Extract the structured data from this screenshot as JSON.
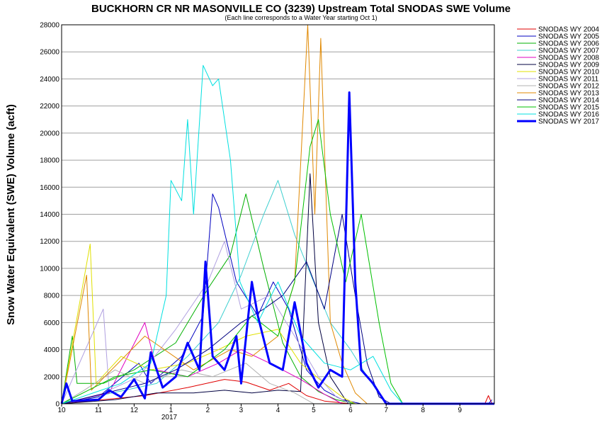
{
  "chart_data": {
    "type": "line",
    "title": "BUCKHORN CR NR MASONVILLE CO (3239) Upstream Total SNODAS SWE Volume",
    "subtitle": "(Each line corresponds to a Water Year starting Oct 1)",
    "ylabel": "Snow Water Equivalent (SWE) Volume (acft)",
    "xlabel": "",
    "x_unit": "month",
    "x_range": [
      "2016-10-01",
      "2017-09-30"
    ],
    "ylim": [
      0,
      28000
    ],
    "y_ticks": [
      0,
      2000,
      4000,
      6000,
      8000,
      10000,
      12000,
      14000,
      16000,
      18000,
      20000,
      22000,
      24000,
      26000,
      28000
    ],
    "x_ticks": [
      {
        "date": "2016-10-01",
        "label": "10"
      },
      {
        "date": "2016-11-01",
        "label": "11"
      },
      {
        "date": "2016-12-01",
        "label": "12"
      },
      {
        "date": "2017-01-01",
        "label": "1"
      },
      {
        "date": "2017-02-01",
        "label": "2"
      },
      {
        "date": "2017-03-01",
        "label": "3"
      },
      {
        "date": "2017-04-01",
        "label": "4"
      },
      {
        "date": "2017-05-01",
        "label": "5"
      },
      {
        "date": "2017-06-01",
        "label": "6"
      },
      {
        "date": "2017-07-01",
        "label": "7"
      },
      {
        "date": "2017-08-01",
        "label": "8"
      },
      {
        "date": "2017-09-01",
        "label": "9"
      }
    ],
    "year_label": "2017",
    "grid": "horizontal",
    "legend_position": "right",
    "series": [
      {
        "name": "SNODAS WY 2004",
        "color": "#e00000",
        "width": 1,
        "points": [
          [
            "2016-10-01",
            0
          ],
          [
            "2016-12-10",
            600
          ],
          [
            "2017-01-15",
            1200
          ],
          [
            "2017-02-15",
            1800
          ],
          [
            "2017-03-05",
            1600
          ],
          [
            "2017-03-25",
            1000
          ],
          [
            "2017-04-10",
            1500
          ],
          [
            "2017-04-25",
            600
          ],
          [
            "2017-05-10",
            200
          ],
          [
            "2017-06-01",
            0
          ],
          [
            "2017-09-22",
            0
          ],
          [
            "2017-09-25",
            600
          ],
          [
            "2017-09-28",
            0
          ]
        ]
      },
      {
        "name": "SNODAS WY 2005",
        "color": "#0000c0",
        "width": 1,
        "points": [
          [
            "2016-10-01",
            0
          ],
          [
            "2016-11-01",
            500
          ],
          [
            "2016-12-05",
            3000
          ],
          [
            "2016-12-15",
            1500
          ],
          [
            "2017-01-10",
            3500
          ],
          [
            "2017-01-28",
            6500
          ],
          [
            "2017-02-05",
            15500
          ],
          [
            "2017-02-10",
            14500
          ],
          [
            "2017-02-25",
            9000
          ],
          [
            "2017-03-15",
            6500
          ],
          [
            "2017-03-28",
            9000
          ],
          [
            "2017-04-10",
            7000
          ],
          [
            "2017-04-25",
            2500
          ],
          [
            "2017-05-10",
            1000
          ],
          [
            "2017-05-25",
            300
          ],
          [
            "2017-06-10",
            0
          ],
          [
            "2017-09-25",
            0
          ],
          [
            "2017-09-28",
            300
          ]
        ]
      },
      {
        "name": "SNODAS WY 2006",
        "color": "#00b000",
        "width": 1,
        "points": [
          [
            "2016-10-01",
            0
          ],
          [
            "2016-10-10",
            5000
          ],
          [
            "2016-10-14",
            1500
          ],
          [
            "2016-11-05",
            1500
          ],
          [
            "2016-12-01",
            2500
          ],
          [
            "2017-01-05",
            4500
          ],
          [
            "2017-02-01",
            8500
          ],
          [
            "2017-02-20",
            11000
          ],
          [
            "2017-03-05",
            15500
          ],
          [
            "2017-03-20",
            10000
          ],
          [
            "2017-04-05",
            4500
          ],
          [
            "2017-04-20",
            2000
          ],
          [
            "2017-05-05",
            900
          ],
          [
            "2017-05-20",
            300
          ],
          [
            "2017-06-05",
            0
          ],
          [
            "2017-09-30",
            0
          ]
        ]
      },
      {
        "name": "SNODAS WY 2007",
        "color": "#40d0d0",
        "width": 1,
        "points": [
          [
            "2016-10-01",
            0
          ],
          [
            "2016-12-20",
            1500
          ],
          [
            "2017-01-15",
            3500
          ],
          [
            "2017-02-10",
            6000
          ],
          [
            "2017-03-01",
            9500
          ],
          [
            "2017-03-20",
            14000
          ],
          [
            "2017-04-01",
            16500
          ],
          [
            "2017-04-15",
            12500
          ],
          [
            "2017-05-01",
            9000
          ],
          [
            "2017-05-15",
            6000
          ],
          [
            "2017-06-01",
            4000
          ],
          [
            "2017-06-15",
            2000
          ],
          [
            "2017-07-01",
            0
          ],
          [
            "2017-09-30",
            0
          ]
        ]
      },
      {
        "name": "SNODAS WY 2008",
        "color": "#e000c0",
        "width": 1,
        "points": [
          [
            "2016-10-01",
            0
          ],
          [
            "2016-11-10",
            800
          ],
          [
            "2016-12-10",
            6000
          ],
          [
            "2016-12-20",
            2500
          ],
          [
            "2017-01-15",
            2000
          ],
          [
            "2017-02-10",
            3000
          ],
          [
            "2017-03-01",
            4000
          ],
          [
            "2017-03-25",
            3000
          ],
          [
            "2017-04-20",
            1800
          ],
          [
            "2017-05-10",
            700
          ],
          [
            "2017-05-25",
            0
          ],
          [
            "2017-09-30",
            0
          ]
        ]
      },
      {
        "name": "SNODAS WY 2009",
        "color": "#000040",
        "width": 1,
        "points": [
          [
            "2016-10-01",
            0
          ],
          [
            "2016-11-15",
            300
          ],
          [
            "2016-12-20",
            800
          ],
          [
            "2017-01-20",
            800
          ],
          [
            "2017-02-15",
            1000
          ],
          [
            "2017-03-10",
            800
          ],
          [
            "2017-04-01",
            1000
          ],
          [
            "2017-04-20",
            900
          ],
          [
            "2017-04-28",
            17000
          ],
          [
            "2017-05-05",
            6000
          ],
          [
            "2017-05-15",
            2000
          ],
          [
            "2017-05-30",
            0
          ],
          [
            "2017-09-30",
            0
          ]
        ]
      },
      {
        "name": "SNODAS WY 2010",
        "color": "#e0e000",
        "width": 1,
        "points": [
          [
            "2016-10-01",
            0
          ],
          [
            "2016-10-25",
            11800
          ],
          [
            "2016-10-30",
            1500
          ],
          [
            "2016-11-20",
            3500
          ],
          [
            "2016-12-15",
            2500
          ],
          [
            "2017-01-15",
            3000
          ],
          [
            "2017-02-10",
            4000
          ],
          [
            "2017-03-05",
            5000
          ],
          [
            "2017-04-01",
            5500
          ],
          [
            "2017-04-20",
            3000
          ],
          [
            "2017-05-10",
            1500
          ],
          [
            "2017-05-25",
            500
          ],
          [
            "2017-06-05",
            0
          ],
          [
            "2017-09-30",
            0
          ]
        ]
      },
      {
        "name": "SNODAS WY 2011",
        "color": "#b0a0e0",
        "width": 1,
        "points": [
          [
            "2016-10-01",
            0
          ],
          [
            "2016-11-05",
            7000
          ],
          [
            "2016-11-10",
            1000
          ],
          [
            "2016-12-05",
            2000
          ],
          [
            "2017-01-05",
            5500
          ],
          [
            "2017-02-01",
            9000
          ],
          [
            "2017-02-15",
            12000
          ],
          [
            "2017-03-01",
            7000
          ],
          [
            "2017-03-25",
            8000
          ],
          [
            "2017-04-15",
            5000
          ],
          [
            "2017-05-05",
            2000
          ],
          [
            "2017-05-20",
            500
          ],
          [
            "2017-06-01",
            0
          ],
          [
            "2017-09-30",
            0
          ]
        ]
      },
      {
        "name": "SNODAS WY 2012",
        "color": "#b0b0b0",
        "width": 1,
        "points": [
          [
            "2016-10-01",
            0
          ],
          [
            "2016-10-20",
            1000
          ],
          [
            "2016-11-15",
            2500
          ],
          [
            "2016-12-10",
            1500
          ],
          [
            "2017-01-10",
            2500
          ],
          [
            "2017-02-05",
            2000
          ],
          [
            "2017-03-05",
            3000
          ],
          [
            "2017-03-25",
            1500
          ],
          [
            "2017-04-15",
            800
          ],
          [
            "2017-05-01",
            0
          ],
          [
            "2017-09-30",
            0
          ]
        ]
      },
      {
        "name": "SNODAS WY 2013",
        "color": "#e08800",
        "width": 1,
        "points": [
          [
            "2016-10-01",
            0
          ],
          [
            "2016-10-22",
            9500
          ],
          [
            "2016-10-26",
            1000
          ],
          [
            "2016-12-10",
            5000
          ],
          [
            "2017-01-20",
            2500
          ],
          [
            "2017-02-20",
            4000
          ],
          [
            "2017-03-10",
            3500
          ],
          [
            "2017-04-01",
            5000
          ],
          [
            "2017-04-15",
            9000
          ],
          [
            "2017-04-26",
            28000
          ],
          [
            "2017-05-02",
            14000
          ],
          [
            "2017-05-07",
            27000
          ],
          [
            "2017-05-15",
            6000
          ],
          [
            "2017-05-25",
            3000
          ],
          [
            "2017-06-05",
            800
          ],
          [
            "2017-06-15",
            0
          ],
          [
            "2017-09-30",
            0
          ]
        ]
      },
      {
        "name": "SNODAS WY 2014",
        "color": "#000080",
        "width": 1,
        "points": [
          [
            "2016-10-01",
            0
          ],
          [
            "2016-12-10",
            1500
          ],
          [
            "2017-01-05",
            2500
          ],
          [
            "2017-02-01",
            4000
          ],
          [
            "2017-03-01",
            6000
          ],
          [
            "2017-03-20",
            7000
          ],
          [
            "2017-04-05",
            8000
          ],
          [
            "2017-04-25",
            10500
          ],
          [
            "2017-05-10",
            7000
          ],
          [
            "2017-05-25",
            14000
          ],
          [
            "2017-06-05",
            8000
          ],
          [
            "2017-06-15",
            3000
          ],
          [
            "2017-06-25",
            500
          ],
          [
            "2017-07-05",
            0
          ],
          [
            "2017-09-30",
            0
          ]
        ]
      },
      {
        "name": "SNODAS WY 2015",
        "color": "#00c000",
        "width": 1,
        "points": [
          [
            "2016-10-01",
            0
          ],
          [
            "2016-11-15",
            2000
          ],
          [
            "2016-12-15",
            2500
          ],
          [
            "2017-01-15",
            2000
          ],
          [
            "2017-02-15",
            4000
          ],
          [
            "2017-03-10",
            6500
          ],
          [
            "2017-04-01",
            5000
          ],
          [
            "2017-04-15",
            9000
          ],
          [
            "2017-04-28",
            19000
          ],
          [
            "2017-05-05",
            21000
          ],
          [
            "2017-05-15",
            14000
          ],
          [
            "2017-05-28",
            9000
          ],
          [
            "2017-06-10",
            14000
          ],
          [
            "2017-06-25",
            6000
          ],
          [
            "2017-07-05",
            1500
          ],
          [
            "2017-07-15",
            0
          ],
          [
            "2017-09-30",
            0
          ]
        ]
      },
      {
        "name": "SNODAS WY 2016",
        "color": "#00e0e0",
        "width": 1,
        "points": [
          [
            "2016-10-01",
            0
          ],
          [
            "2016-11-20",
            1500
          ],
          [
            "2016-12-15",
            3000
          ],
          [
            "2016-12-28",
            8000
          ],
          [
            "2017-01-01",
            16500
          ],
          [
            "2017-01-10",
            15000
          ],
          [
            "2017-01-15",
            21000
          ],
          [
            "2017-01-20",
            14000
          ],
          [
            "2017-01-28",
            25000
          ],
          [
            "2017-02-05",
            23500
          ],
          [
            "2017-02-10",
            24000
          ],
          [
            "2017-02-20",
            18000
          ],
          [
            "2017-02-28",
            9000
          ],
          [
            "2017-03-15",
            6000
          ],
          [
            "2017-04-01",
            9000
          ],
          [
            "2017-04-20",
            5000
          ],
          [
            "2017-05-10",
            3000
          ],
          [
            "2017-06-01",
            2500
          ],
          [
            "2017-06-20",
            3500
          ],
          [
            "2017-07-05",
            1000
          ],
          [
            "2017-07-15",
            0
          ],
          [
            "2017-09-30",
            0
          ]
        ]
      },
      {
        "name": "SNODAS WY 2017",
        "color": "#0000ff",
        "width": 3,
        "points": [
          [
            "2016-10-01",
            0
          ],
          [
            "2016-10-05",
            1500
          ],
          [
            "2016-10-10",
            200
          ],
          [
            "2016-11-01",
            300
          ],
          [
            "2016-11-10",
            1000
          ],
          [
            "2016-11-20",
            500
          ],
          [
            "2016-12-01",
            1800
          ],
          [
            "2016-12-10",
            400
          ],
          [
            "2016-12-15",
            3800
          ],
          [
            "2016-12-25",
            1200
          ],
          [
            "2017-01-05",
            2000
          ],
          [
            "2017-01-15",
            4500
          ],
          [
            "2017-01-25",
            2500
          ],
          [
            "2017-01-30",
            10500
          ],
          [
            "2017-02-05",
            3500
          ],
          [
            "2017-02-15",
            2500
          ],
          [
            "2017-02-25",
            5000
          ],
          [
            "2017-03-01",
            1500
          ],
          [
            "2017-03-10",
            9000
          ],
          [
            "2017-03-15",
            6500
          ],
          [
            "2017-03-25",
            3000
          ],
          [
            "2017-04-05",
            2500
          ],
          [
            "2017-04-15",
            7500
          ],
          [
            "2017-04-25",
            3000
          ],
          [
            "2017-05-05",
            1200
          ],
          [
            "2017-05-15",
            2500
          ],
          [
            "2017-05-25",
            2000
          ],
          [
            "2017-05-31",
            23000
          ],
          [
            "2017-06-05",
            9000
          ],
          [
            "2017-06-10",
            2500
          ],
          [
            "2017-06-20",
            1500
          ],
          [
            "2017-06-25",
            800
          ],
          [
            "2017-07-01",
            0
          ],
          [
            "2017-09-30",
            0
          ]
        ]
      }
    ]
  }
}
